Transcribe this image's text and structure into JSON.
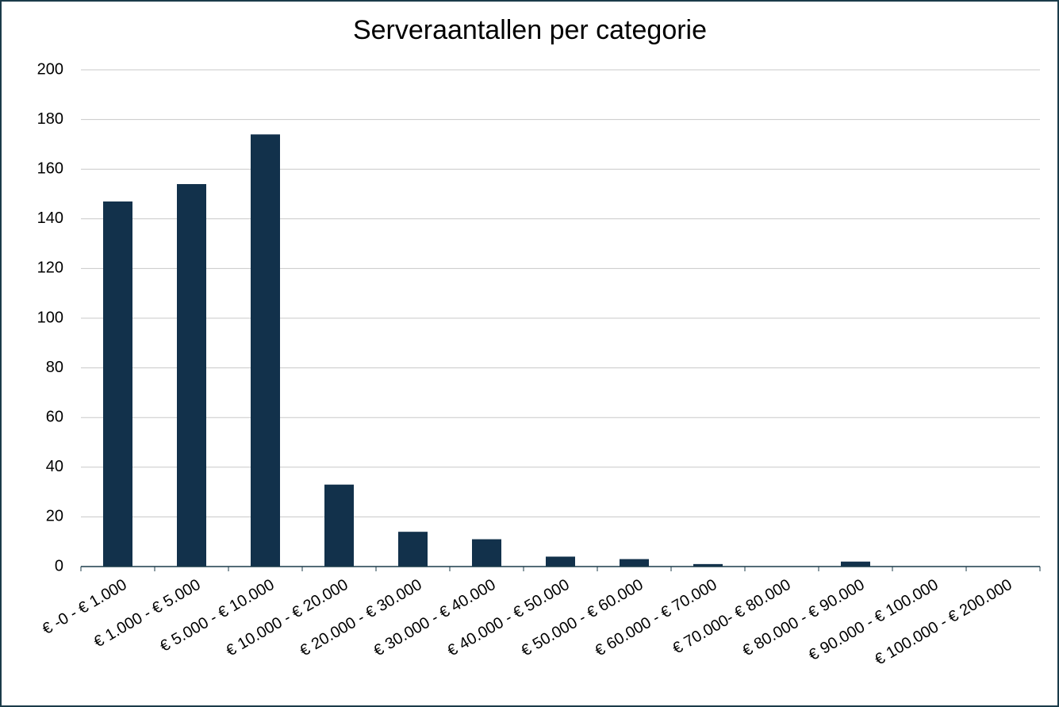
{
  "chart_data": {
    "type": "bar",
    "title": "Serveraantallen per categorie",
    "categories": [
      "€ -0 - € 1.000",
      "€ 1.000 - € 5.000",
      "€ 5.000 - € 10.000",
      "€ 10.000 - € 20.000",
      "€ 20.000 - € 30.000",
      "€ 30.000 - € 40.000",
      "€ 40.000 - € 50.000",
      "€ 50.000 - € 60.000",
      "€ 60.000 - € 70.000",
      "€ 70.000- € 80.000",
      "€ 80.000 - € 90.000",
      "€ 90.000 - € 100.000",
      "€ 100.000 - € 200.000"
    ],
    "values": [
      147,
      154,
      174,
      33,
      14,
      11,
      4,
      3,
      1,
      0,
      2,
      0,
      0
    ],
    "color": "#12314b",
    "ylim": [
      0,
      200
    ],
    "yticks": [
      0,
      20,
      40,
      60,
      80,
      100,
      120,
      140,
      160,
      180,
      200
    ],
    "grid": true
  }
}
